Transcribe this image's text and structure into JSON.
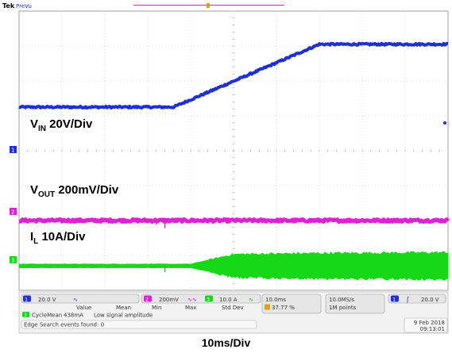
{
  "header": {
    "brand": "Tek",
    "mode": "PreVu"
  },
  "colors": {
    "ch1": "#1f2fd6",
    "ch2": "#e020d8",
    "ch3": "#16d816",
    "grid": "#b8b8b8",
    "trigger": "#e8a000"
  },
  "chart_data": {
    "type": "line",
    "x_divisions": 10,
    "y_divisions": 8,
    "x_unit_per_div": "10ms",
    "series": [
      {
        "name": "VIN",
        "channel": "1",
        "points_div": [
          [
            0,
            1.25
          ],
          [
            3.6,
            1.25
          ],
          [
            7.0,
            3.05
          ],
          [
            10,
            3.05
          ]
        ],
        "ripple_div": 0.05
      },
      {
        "name": "VOUT",
        "channel": "2",
        "points_div": [
          [
            0,
            -2.0
          ],
          [
            10,
            -2.0
          ]
        ],
        "ripple_div": 0.07
      },
      {
        "name": "IL",
        "channel": "3",
        "points_div": [
          [
            0,
            -3.3
          ],
          [
            10,
            -3.3
          ]
        ],
        "envelope_div": [
          [
            0,
            0.05
          ],
          [
            4.0,
            0.05
          ],
          [
            5.0,
            0.33
          ],
          [
            7.0,
            0.36
          ],
          [
            10,
            0.38
          ]
        ]
      }
    ],
    "annotations": {
      "vin": {
        "main": "V",
        "sub": "IN",
        "rest": " 20V/Div"
      },
      "vout": {
        "main": "V",
        "sub": "OUT",
        "rest": " 200mV/Div"
      },
      "il": {
        "main": "I",
        "sub": "L",
        "rest": " 10A/Div"
      }
    },
    "xlabel": "10ms/Div"
  },
  "status_panel": {
    "ch1_scale": "20.0 V",
    "ch2_scale": "200mV",
    "ch3_scale": "10.0 A",
    "timebase": "10.0ms",
    "trigger_position": "37.77 %",
    "sample_rate": "10.0MS/s",
    "record_length": "1M points",
    "trigger_level": "20.0 V",
    "measure_headers": [
      "Value",
      "Mean",
      "Min",
      "Max",
      "Std Dev"
    ],
    "measure_name": "CycleMean",
    "measure_value": "438mA",
    "measure_note": "Low signal amplitude",
    "search_status": "Edge Search events found: 0",
    "date": "9 Feb 2018",
    "time": "09:13:01"
  }
}
